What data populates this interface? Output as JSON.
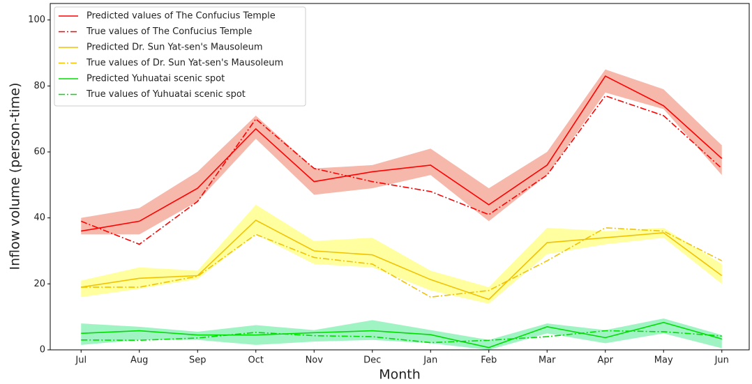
{
  "chart_data": {
    "type": "line",
    "xlabel": "Month",
    "ylabel": "Inflow volume (person-time)",
    "categories": [
      "Jul",
      "Aug",
      "Sep",
      "Oct",
      "Nov",
      "Dec",
      "Jan",
      "Feb",
      "Mar",
      "Apr",
      "May",
      "Jun"
    ],
    "ylim": [
      0,
      105
    ],
    "yticks": [
      0,
      20,
      40,
      60,
      80,
      100
    ],
    "grid": false,
    "legend": "upper left",
    "series": [
      {
        "name": "Predicted values of The Confucius Temple",
        "color": "#ff0000",
        "style": "solid",
        "band_color": "#f4a090",
        "values": [
          36,
          39,
          49,
          67,
          51,
          54,
          56,
          44,
          56,
          83,
          74,
          58
        ],
        "lower": [
          35,
          35,
          45,
          64,
          47,
          49,
          53,
          39,
          53,
          78,
          73,
          53
        ],
        "upper": [
          40,
          43,
          54,
          71,
          55,
          56,
          61,
          49,
          60,
          85,
          79,
          62
        ]
      },
      {
        "name": "True values of The Confucius Temple",
        "color": "#ff0000",
        "style": "dashdot",
        "values": [
          39,
          32,
          45,
          70,
          55,
          51,
          48,
          41,
          53,
          77,
          71,
          55
        ]
      },
      {
        "name": "Predicted Dr. Sun Yat-sen's Mausoleum",
        "color": "#f2c200",
        "style": "solid",
        "band_color": "#ffff80",
        "values": [
          19,
          21.7,
          22.5,
          39.3,
          30,
          28.8,
          21.3,
          15.3,
          32.5,
          34,
          35.5,
          22.5
        ],
        "lower": [
          16,
          18.5,
          21.5,
          35,
          26,
          25,
          18,
          14,
          29,
          32,
          34,
          20
        ],
        "upper": [
          21,
          25,
          24,
          44,
          33,
          34,
          24,
          19,
          37,
          36,
          37,
          26
        ]
      },
      {
        "name": "True values of Dr. Sun Yat-sen's Mausoleum",
        "color": "#f2c200",
        "style": "dashdot",
        "values": [
          19,
          19,
          22.3,
          35,
          28,
          26,
          16,
          18,
          27,
          37,
          36,
          27
        ]
      },
      {
        "name": "Predicted Yuhuatai scenic spot",
        "color": "#00dd00",
        "style": "solid",
        "band_color": "#80f0b0",
        "values": [
          5,
          5.8,
          4.5,
          4.5,
          5.2,
          5.8,
          4.6,
          0.7,
          7,
          3.7,
          8.3,
          3.3
        ],
        "lower": [
          1.5,
          3,
          3,
          1.5,
          2.5,
          3,
          2,
          0,
          5,
          2,
          5,
          0.5
        ],
        "upper": [
          8,
          7,
          5.5,
          7.5,
          6,
          9,
          6,
          3,
          8,
          6,
          9.5,
          4.5
        ]
      },
      {
        "name": "True values of Yuhuatai scenic spot",
        "color": "#00dd00",
        "style": "dashdot",
        "values": [
          3,
          2.9,
          3.6,
          5.3,
          4.3,
          4,
          2.2,
          2.9,
          4,
          5.8,
          5.5,
          4.2
        ]
      }
    ]
  }
}
